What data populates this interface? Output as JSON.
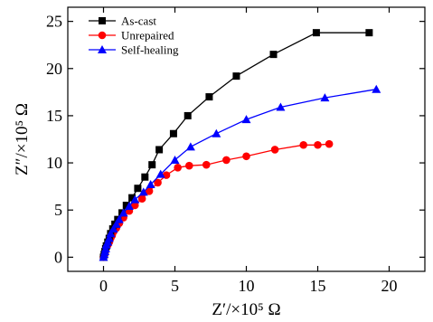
{
  "chart_data": {
    "type": "line",
    "xlabel": "Z′/×10⁵ Ω",
    "ylabel": "Z″/×10⁵ Ω",
    "xlim": [
      -2.5,
      22.5
    ],
    "ylim": [
      -1.5,
      26.5
    ],
    "x_ticks": [
      0,
      5,
      10,
      15,
      20
    ],
    "y_ticks": [
      0,
      5,
      10,
      15,
      20,
      25
    ],
    "x_tick_labels": [
      "0",
      "5",
      "10",
      "15",
      "20"
    ],
    "y_tick_labels": [
      "0",
      "5",
      "10",
      "15",
      "20",
      "25"
    ],
    "grid": false,
    "legend_position": "top-left",
    "series": [
      {
        "name": "As-cast",
        "color": "#000000",
        "marker": "square",
        "x": [
          0.0,
          0.05,
          0.1,
          0.15,
          0.2,
          0.3,
          0.4,
          0.5,
          0.65,
          0.8,
          1.0,
          1.3,
          1.6,
          2.0,
          2.4,
          2.9,
          3.4,
          3.9,
          4.9,
          5.9,
          7.4,
          9.3,
          11.9,
          14.9,
          18.6
        ],
        "y": [
          0.0,
          0.3,
          0.6,
          0.9,
          1.2,
          1.6,
          2.0,
          2.5,
          3.0,
          3.5,
          4.0,
          4.7,
          5.5,
          6.3,
          7.3,
          8.5,
          9.8,
          11.4,
          13.1,
          15.0,
          17.0,
          19.2,
          21.5,
          23.8,
          23.8
        ]
      },
      {
        "name": "Unrepaired",
        "color": "#ff0000",
        "marker": "circle",
        "x": [
          0.0,
          0.05,
          0.1,
          0.15,
          0.2,
          0.3,
          0.4,
          0.5,
          0.6,
          0.7,
          0.9,
          1.1,
          1.4,
          1.8,
          2.2,
          2.7,
          3.2,
          3.8,
          4.4,
          5.2,
          6.0,
          7.2,
          8.6,
          10.0,
          12.0,
          14.0,
          15.0,
          15.8
        ],
        "y": [
          0.0,
          0.2,
          0.4,
          0.7,
          1.0,
          1.3,
          1.6,
          2.0,
          2.3,
          2.7,
          3.1,
          3.6,
          4.2,
          4.9,
          5.5,
          6.2,
          7.0,
          7.9,
          8.7,
          9.5,
          9.7,
          9.8,
          10.3,
          10.7,
          11.4,
          11.9,
          11.9,
          12.0
        ]
      },
      {
        "name": "Self-healing",
        "color": "#0000ff",
        "marker": "triangle",
        "x": [
          0.0,
          0.05,
          0.1,
          0.15,
          0.2,
          0.3,
          0.4,
          0.5,
          0.7,
          0.9,
          1.1,
          1.4,
          1.8,
          2.2,
          2.8,
          3.3,
          4.0,
          5.0,
          6.1,
          7.9,
          10.0,
          12.4,
          15.5,
          19.1
        ],
        "y": [
          0.0,
          0.3,
          0.6,
          0.9,
          1.3,
          1.6,
          2.0,
          2.5,
          3.0,
          3.5,
          4.0,
          4.7,
          5.4,
          6.1,
          6.9,
          7.7,
          8.8,
          10.3,
          11.7,
          13.1,
          14.6,
          15.9,
          16.9,
          17.8
        ]
      }
    ]
  }
}
